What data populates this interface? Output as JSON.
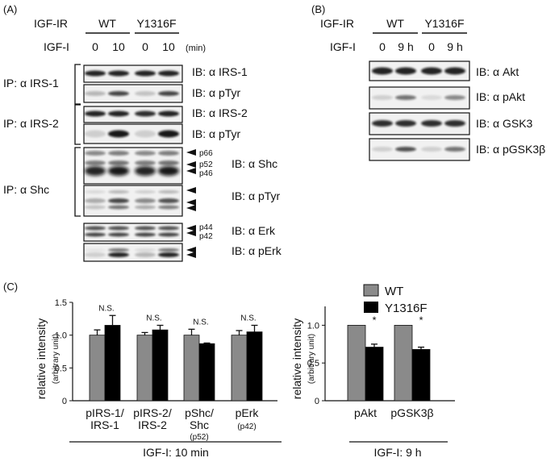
{
  "panel_a": {
    "label": "(A)",
    "receptor_label": "IGF-IR",
    "ligand_label": "IGF-I",
    "groups": [
      "WT",
      "Y1316F"
    ],
    "lanes": [
      "0",
      "10",
      "0",
      "10"
    ],
    "time_unit": "(min)",
    "ip_labels": [
      "IP: α IRS-1",
      "IP: α IRS-2",
      "IP: α Shc"
    ],
    "blot_labels": [
      "IB: α IRS-1",
      "IB: α pTyr",
      "IB: α IRS-2",
      "IB: α pTyr",
      "IB: α Shc",
      "IB: α pTyr",
      "IB: α Erk",
      "IB: α pErk"
    ],
    "band_markers": {
      "shc": [
        "p66",
        "p52",
        "p46"
      ],
      "erk": [
        "p44",
        "p42"
      ]
    }
  },
  "panel_b": {
    "label": "(B)",
    "receptor_label": "IGF-IR",
    "ligand_label": "IGF-I",
    "groups": [
      "WT",
      "Y1316F"
    ],
    "lanes": [
      "0",
      "9 h",
      "0",
      "9 h"
    ],
    "blot_labels": [
      "IB: α Akt",
      "IB: α pAkt",
      "IB: α GSK3",
      "IB: α pGSK3β"
    ]
  },
  "panel_c": {
    "label": "(C)",
    "legend": [
      "WT",
      "Y1316F"
    ],
    "colors": {
      "WT": "#8a8a8a",
      "Y1316F": "#000000"
    }
  },
  "chart_data": [
    {
      "type": "bar",
      "ylabel": "relative intensity",
      "ylabel_sub": "(arbitrary unit)",
      "ylim": [
        0,
        1.5
      ],
      "yticks": [
        "0",
        "0.5",
        "1.0",
        "1.5"
      ],
      "categories": [
        {
          "line1": "pIRS-1/",
          "line2": "IRS-1",
          "line3": ""
        },
        {
          "line1": "pIRS-2/",
          "line2": "IRS-2",
          "line3": ""
        },
        {
          "line1": "pShc/",
          "line2": "Shc",
          "line3": "(p52)"
        },
        {
          "line1": "pErk",
          "line2": "(p42)",
          "line3": ""
        }
      ],
      "series": [
        {
          "name": "WT",
          "values": [
            1.0,
            1.0,
            1.0,
            1.0
          ],
          "errors": [
            0.08,
            0.04,
            0.09,
            0.07
          ]
        },
        {
          "name": "Y1316F",
          "values": [
            1.15,
            1.08,
            0.87,
            1.05
          ],
          "errors": [
            0.15,
            0.07,
            0.01,
            0.1
          ]
        }
      ],
      "annotations": [
        "N.S.",
        "N.S.",
        "N.S.",
        "N.S."
      ],
      "xlabel": "IGF-I: 10 min"
    },
    {
      "type": "bar",
      "ylabel": "relative intensity",
      "ylabel_sub": "(arbitrary unit)",
      "ylim": [
        0,
        1.25
      ],
      "yticks": [
        "0",
        "0.5",
        "1.0"
      ],
      "categories": [
        {
          "line1": "pAkt",
          "line2": "",
          "line3": ""
        },
        {
          "line1": "pGSK3β",
          "line2": "",
          "line3": ""
        }
      ],
      "series": [
        {
          "name": "WT",
          "values": [
            1.0,
            1.0
          ],
          "errors": [
            0,
            0
          ]
        },
        {
          "name": "Y1316F",
          "values": [
            0.71,
            0.68
          ],
          "errors": [
            0.04,
            0.03
          ]
        }
      ],
      "annotations": [
        "*",
        "*"
      ],
      "xlabel": "IGF-I: 9 h"
    }
  ]
}
